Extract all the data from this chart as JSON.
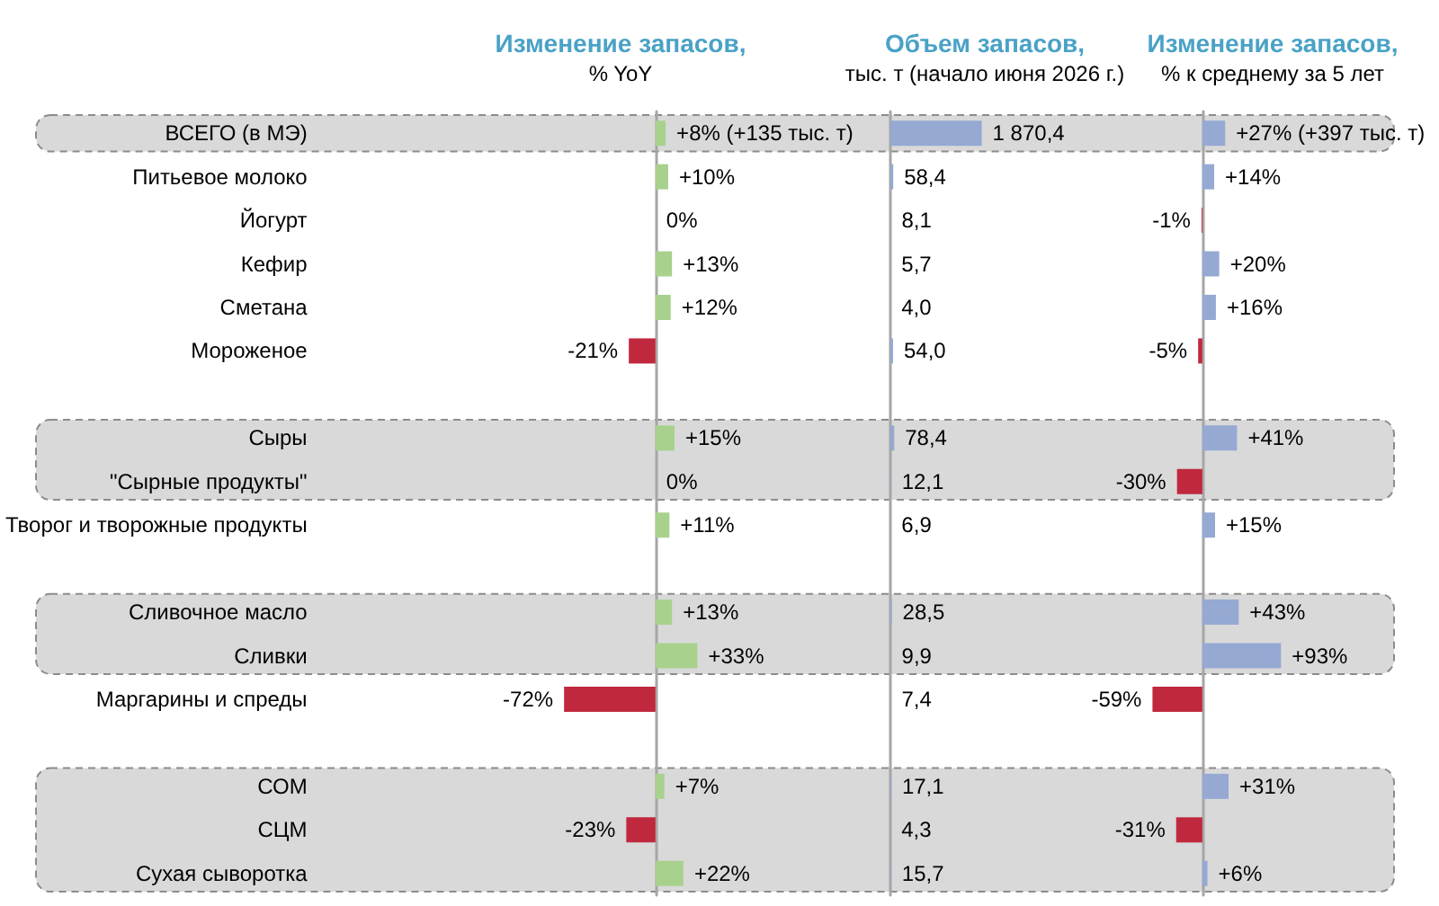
{
  "chart_data": [
    {
      "type": "bar",
      "orientation": "horizontal",
      "title": "Изменение запасов,",
      "subtitle": "% YoY",
      "tick_labels": "y",
      "categories": [
        "ВСЕГО (в МЭ)",
        "Питьевое молоко",
        "Йогурт",
        "Кефир",
        "Сметана",
        "Мороженое",
        null,
        "Сыры",
        "\"Сырные продукты\"",
        "Творог и творожные продукты",
        null,
        "Сливочное масло",
        "Сливки",
        "Маргарины и спреды",
        null,
        "СОМ",
        "СЦМ",
        "Сухая сыворотка"
      ],
      "values": [
        8,
        10,
        0,
        13,
        12,
        -21,
        null,
        15,
        0,
        11,
        null,
        13,
        33,
        -72,
        null,
        7,
        -23,
        22
      ],
      "colors": [
        "#a9d18e",
        "#a9d18e",
        "#a9d18e",
        "#a9d18e",
        "#a9d18e",
        "#c0283e",
        null,
        "#a9d18e",
        "#a9d18e",
        "#a9d18e",
        null,
        "#a9d18e",
        "#a9d18e",
        "#c0283e",
        null,
        "#a9d18e",
        "#c0283e",
        "#a9d18e"
      ],
      "value_labels": [
        "+8% (+135 тыс. т)",
        "+10%",
        "0%",
        "+13%",
        "+12%",
        "-21%",
        null,
        "+15%",
        "0%",
        "+11%",
        null,
        "+13%",
        "+33%",
        "-72%",
        null,
        "+7%",
        "-23%",
        "+22%"
      ],
      "bands": [
        {
          "axis": "y",
          "from": "ВСЕГО (в МЭ)",
          "to": "ВСЕГО (в МЭ)",
          "color": "#d9d9d9"
        },
        {
          "axis": "y",
          "from": "Сыры",
          "to": "\"Сырные продукты\"",
          "color": "#d9d9d9"
        },
        {
          "axis": "y",
          "from": "Сливочное масло",
          "to": "Сливки",
          "color": "#d9d9d9"
        },
        {
          "axis": "y",
          "from": "СОМ",
          "to": "Сухая сыворотка",
          "color": "#d9d9d9"
        }
      ]
    },
    {
      "type": "bar",
      "orientation": "horizontal",
      "title": "Объем запасов,",
      "subtitle": "тыс. т (начало июня 2026 г.)",
      "tick_labels": false,
      "values": [
        1870.4,
        58.4,
        8.1,
        5.7,
        4.0,
        54.0,
        null,
        78.4,
        12.1,
        6.9,
        null,
        28.5,
        9.9,
        7.4,
        null,
        17.1,
        4.3,
        15.7
      ],
      "colors": [
        "#95a9d3",
        "#95a9d3",
        "#95a9d3",
        "#95a9d3",
        "#95a9d3",
        "#95a9d3",
        null,
        "#95a9d3",
        "#95a9d3",
        "#95a9d3",
        null,
        "#95a9d3",
        "#95a9d3",
        "#95a9d3",
        null,
        "#95a9d3",
        "#95a9d3",
        "#95a9d3"
      ],
      "value_labels": [
        "1 870,4",
        "58,4",
        "8,1",
        "5,7",
        "4,0",
        "54,0",
        null,
        "78,4",
        "12,1",
        "6,9",
        null,
        "28,5",
        "9,9",
        "7,4",
        null,
        "17,1",
        "4,3",
        "15,7"
      ]
    },
    {
      "type": "bar",
      "orientation": "horizontal",
      "title": "Изменение запасов,",
      "subtitle": "% к среднему за 5 лет",
      "tick_labels": false,
      "values": [
        27,
        14,
        -1,
        20,
        16,
        -5,
        null,
        41,
        -30,
        15,
        null,
        43,
        93,
        -59,
        null,
        31,
        -31,
        6
      ],
      "colors": [
        "#95a9d3",
        "#95a9d3",
        "#c0283e",
        "#95a9d3",
        "#95a9d3",
        "#c0283e",
        null,
        "#95a9d3",
        "#c0283e",
        "#95a9d3",
        null,
        "#95a9d3",
        "#95a9d3",
        "#c0283e",
        null,
        "#95a9d3",
        "#c0283e",
        "#95a9d3"
      ],
      "value_labels": [
        "+27% (+397 тыс. т)",
        "+14%",
        "-1%",
        "+20%",
        "+16%",
        "-5%",
        null,
        "+41%",
        "-30%",
        "+15%",
        null,
        "+43%",
        "+93%",
        "-59%",
        null,
        "+31%",
        "-31%",
        "+6%"
      ]
    }
  ]
}
